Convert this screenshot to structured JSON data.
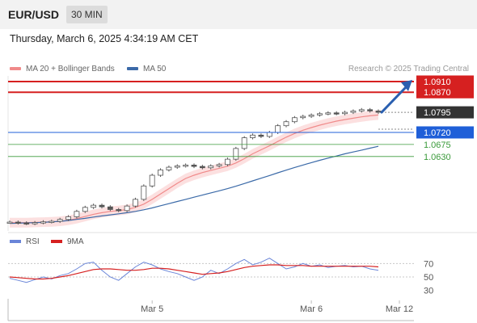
{
  "header": {
    "symbol": "EUR/USD",
    "timeframe": "30 MIN",
    "datetime": "Thursday, March 6, 2025 4:34:19 AM CET"
  },
  "legend": {
    "ma20_label": "MA 20 + Bollinger Bands",
    "ma50_label": "MA 50",
    "credit": "Research © 2025 Trading Central"
  },
  "colors": {
    "resistance": "#d62020",
    "support_blue": "#1f5fd8",
    "support_green": "#3a9a3a",
    "candle": "#555555",
    "ma20": "#f08a8a",
    "ma50": "#3b6aa8",
    "bollinger_fill": "#fbd6d6",
    "price_badge": "#333333",
    "rsi": "#6a85d8",
    "rsi_ma": "#d62020",
    "arrow": "#2a5fb0"
  },
  "chart_data": [
    {
      "type": "line",
      "title": "",
      "price_range": [
        1.0355,
        1.0925
      ],
      "levels": [
        {
          "label": "1.0910",
          "value": 1.091,
          "kind": "resistance"
        },
        {
          "label": "1.0870",
          "value": 1.087,
          "kind": "resistance"
        },
        {
          "label": "1.0795",
          "value": 1.0795,
          "kind": "current"
        },
        {
          "label": "1.0720",
          "value": 1.072,
          "kind": "support_blue"
        },
        {
          "label": "1.0675",
          "value": 1.0675,
          "kind": "support_green"
        },
        {
          "label": "1.0630",
          "value": 1.063,
          "kind": "support_green"
        }
      ],
      "price": [
        1.0385,
        1.0382,
        1.038,
        1.0383,
        1.0386,
        1.0388,
        1.0395,
        1.0405,
        1.0425,
        1.044,
        1.0448,
        1.0442,
        1.0432,
        1.0428,
        1.0445,
        1.047,
        1.052,
        1.056,
        1.058,
        1.059,
        1.0595,
        1.0598,
        1.0593,
        1.0588,
        1.0595,
        1.06,
        1.062,
        1.066,
        1.07,
        1.071,
        1.0705,
        1.072,
        1.0745,
        1.076,
        1.0775,
        1.078,
        1.0785,
        1.079,
        1.0793,
        1.079,
        1.0795,
        1.08,
        1.0805,
        1.08,
        1.0795
      ],
      "ma20": [
        1.0383,
        1.0383,
        1.0383,
        1.0384,
        1.0385,
        1.0386,
        1.0388,
        1.0392,
        1.0398,
        1.0406,
        1.0414,
        1.042,
        1.0425,
        1.0428,
        1.0432,
        1.044,
        1.0452,
        1.047,
        1.049,
        1.051,
        1.053,
        1.0548,
        1.056,
        1.057,
        1.0578,
        1.0586,
        1.0594,
        1.0606,
        1.0622,
        1.064,
        1.0655,
        1.067,
        1.0686,
        1.0702,
        1.0716,
        1.0728,
        1.0738,
        1.0747,
        1.0755,
        1.0762,
        1.0768,
        1.0773,
        1.0778,
        1.0782,
        1.0785
      ],
      "ma50": [
        1.038,
        1.0381,
        1.0382,
        1.0383,
        1.0384,
        1.0386,
        1.0388,
        1.0391,
        1.0395,
        1.0399,
        1.0404,
        1.0408,
        1.0412,
        1.0416,
        1.042,
        1.0425,
        1.0431,
        1.0438,
        1.0446,
        1.0454,
        1.0462,
        1.047,
        1.0478,
        1.0486,
        1.0494,
        1.0502,
        1.051,
        1.0519,
        1.0529,
        1.0539,
        1.0549,
        1.0559,
        1.0569,
        1.0579,
        1.0589,
        1.0598,
        1.0607,
        1.0616,
        1.0624,
        1.0632,
        1.064,
        1.0647,
        1.0654,
        1.0661,
        1.0668
      ],
      "projection": {
        "from": 1.0795,
        "to": 1.091
      }
    },
    {
      "type": "line",
      "title": "",
      "series_labels": {
        "rsi": "RSI",
        "ma": "9MA"
      },
      "yticks": [
        70,
        50,
        30
      ],
      "ylim": [
        20,
        80
      ],
      "rsi": [
        48,
        45,
        42,
        46,
        50,
        47,
        52,
        55,
        62,
        70,
        72,
        60,
        50,
        45,
        55,
        65,
        72,
        68,
        62,
        58,
        55,
        50,
        45,
        50,
        60,
        55,
        62,
        70,
        76,
        68,
        72,
        78,
        70,
        62,
        65,
        70,
        66,
        68,
        64,
        66,
        67,
        65,
        66,
        62,
        60
      ],
      "rsi_ma": [
        50,
        49,
        48,
        47,
        47,
        48,
        50,
        52,
        55,
        58,
        61,
        62,
        62,
        61,
        60,
        60,
        61,
        63,
        63,
        62,
        60,
        58,
        56,
        54,
        55,
        56,
        58,
        61,
        64,
        66,
        67,
        68,
        68,
        67,
        67,
        67,
        66,
        66,
        66,
        66,
        66,
        66,
        66,
        66,
        65
      ]
    }
  ],
  "xaxis": {
    "labels": [
      {
        "text": "Mar 5",
        "index": 17
      },
      {
        "text": "Mar 6",
        "index": 36
      },
      {
        "text": "Mar 12",
        "index": 44
      }
    ]
  }
}
